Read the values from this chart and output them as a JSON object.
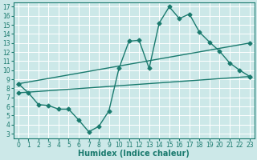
{
  "title": "",
  "xlabel": "Humidex (Indice chaleur)",
  "ylabel": "",
  "background_color": "#cce8e8",
  "grid_color": "#ffffff",
  "line_color": "#1a7a6e",
  "xlim": [
    -0.5,
    23.5
  ],
  "ylim": [
    2.5,
    17.5
  ],
  "yticks": [
    3,
    4,
    5,
    6,
    7,
    8,
    9,
    10,
    11,
    12,
    13,
    14,
    15,
    16,
    17
  ],
  "xticks": [
    0,
    1,
    2,
    3,
    4,
    5,
    6,
    7,
    8,
    9,
    10,
    11,
    12,
    13,
    14,
    15,
    16,
    17,
    18,
    19,
    20,
    21,
    22,
    23
  ],
  "line1_x": [
    0,
    1,
    2,
    3,
    4,
    5,
    6,
    7,
    8,
    9,
    10,
    11,
    12,
    13,
    14,
    15,
    16,
    17,
    18,
    19,
    20,
    21,
    22,
    23
  ],
  "line1_y": [
    8.5,
    7.5,
    6.2,
    6.1,
    5.7,
    5.7,
    4.5,
    3.2,
    3.8,
    5.5,
    10.2,
    13.2,
    13.3,
    10.2,
    15.2,
    17.0,
    15.7,
    16.2,
    14.2,
    13.1,
    12.1,
    10.8,
    10.0,
    9.3
  ],
  "line2_x": [
    0,
    23
  ],
  "line2_y": [
    8.5,
    13.0
  ],
  "line3_x": [
    0,
    23
  ],
  "line3_y": [
    7.5,
    9.3
  ],
  "marker": "D",
  "markersize": 2.5,
  "linewidth": 1.0,
  "tick_fontsize": 5.5,
  "label_fontsize": 7.0
}
